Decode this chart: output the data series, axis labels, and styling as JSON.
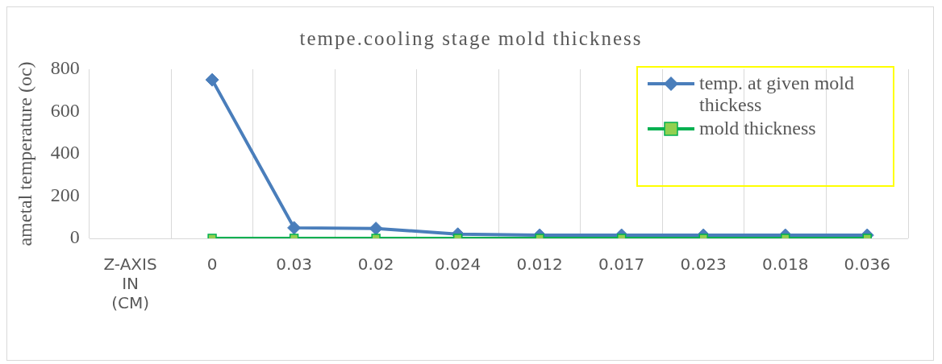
{
  "chart_data": {
    "type": "line",
    "title": "tempe.cooling stage mold thickness",
    "ylabel": "ametal temperature (oc)",
    "categories": [
      "Z-AXIS IN (CM)",
      "0",
      "0.03",
      "0.02",
      "0.024",
      "0.012",
      "0.017",
      "0.023",
      "0.018",
      "0.036"
    ],
    "series": [
      {
        "name": "temp. at given mold thickess",
        "color": "#4a7ebb",
        "marker": "diamond",
        "values": [
          null,
          750,
          50,
          47,
          20,
          15,
          15,
          15,
          15,
          15
        ]
      },
      {
        "name": "mold thickness",
        "color": "#00b050",
        "marker": "square",
        "values": [
          null,
          0,
          0,
          0,
          0,
          0,
          0,
          0,
          0,
          0
        ]
      }
    ],
    "ylim": [
      0,
      800
    ],
    "yticks": [
      0,
      200,
      400,
      600,
      800
    ],
    "grid": "x",
    "legend": "top right"
  }
}
